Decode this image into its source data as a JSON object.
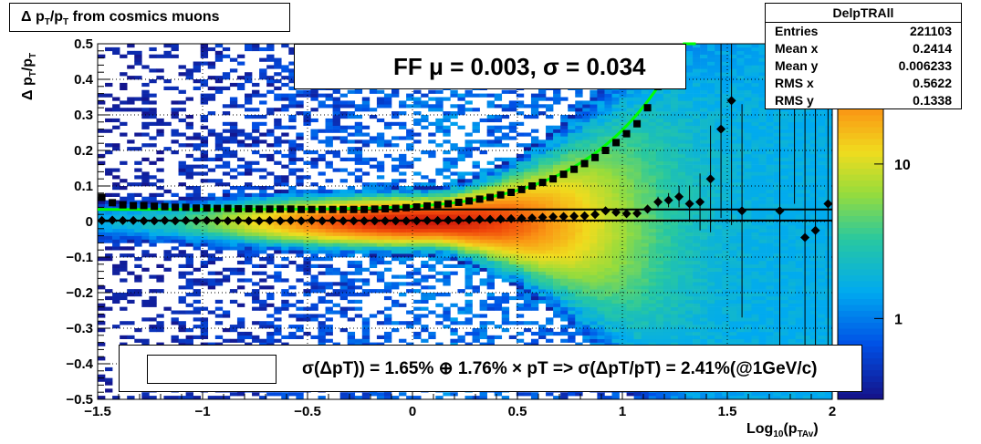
{
  "title": {
    "parts": [
      "Δ p",
      "T",
      "/p",
      "T",
      " from cosmics muons"
    ]
  },
  "stats_box": {
    "name": "DelpTRAll",
    "rows": [
      {
        "label": "Entries",
        "value": "221103"
      },
      {
        "label": "Mean x",
        "value": "0.2414"
      },
      {
        "label": "Mean y",
        "value": "0.006233"
      },
      {
        "label": "RMS x",
        "value": "0.5622"
      },
      {
        "label": "RMS y",
        "value": "0.1338"
      }
    ]
  },
  "fit_legend": {
    "text": "FF μ =  0.003, σ =   0.034"
  },
  "resolution_legend": {
    "text": "σ(ΔpT)) =  1.65% ⊕  1.76% × pT => σ(ΔpT/pT) =  2.41%(@1GeV/c)"
  },
  "axes": {
    "xlabel_main": "Log",
    "xlabel_sub": "10",
    "xlabel_paren": "(p",
    "xlabel_sub2": "TAv",
    "xlabel_close": ")",
    "ylabel_parts": [
      "Δ p",
      "T",
      "/p",
      "T"
    ]
  },
  "colors": {
    "mean_marker": "#000000",
    "sigma_fit": "#00ff00",
    "fit_line": "#000000"
  },
  "chart_data": {
    "type": "heatmap",
    "title": "Δ pT/pT from cosmics muons",
    "xlabel": "Log10(pTAv)",
    "ylabel": "Δ pT/pT",
    "xlim": [
      -1.5,
      2.0
    ],
    "ylim": [
      -0.5,
      0.5
    ],
    "x_ticks": [
      -1.5,
      -1,
      -0.5,
      0,
      0.5,
      1,
      1.5,
      2
    ],
    "x_tick_labels": [
      "−1.5",
      "−1",
      "−0.5",
      "0",
      "0.5",
      "1",
      "1.5",
      "2"
    ],
    "y_ticks": [
      -0.5,
      -0.4,
      -0.3,
      -0.2,
      -0.1,
      0,
      0.1,
      0.2,
      0.3,
      0.4,
      0.5
    ],
    "y_tick_labels": [
      "−0.5",
      "−0.4",
      "−0.3",
      "−0.2",
      "−0.1",
      "0",
      "0.1",
      "0.2",
      "0.3",
      "0.4",
      "0.5"
    ],
    "z_scale": "log",
    "z_tick_labels": [
      "1",
      "10"
    ],
    "z_ticks": [
      1,
      10
    ],
    "z_range": [
      0.3,
      60
    ],
    "grid": true,
    "mean_series": {
      "x": [
        -1.48,
        -1.43,
        -1.38,
        -1.33,
        -1.28,
        -1.23,
        -1.18,
        -1.13,
        -1.08,
        -1.03,
        -0.98,
        -0.93,
        -0.88,
        -0.83,
        -0.78,
        -0.73,
        -0.68,
        -0.63,
        -0.58,
        -0.53,
        -0.48,
        -0.43,
        -0.38,
        -0.33,
        -0.28,
        -0.23,
        -0.18,
        -0.13,
        -0.08,
        -0.03,
        0.02,
        0.07,
        0.12,
        0.17,
        0.22,
        0.27,
        0.32,
        0.37,
        0.42,
        0.47,
        0.52,
        0.57,
        0.62,
        0.67,
        0.72,
        0.77,
        0.82,
        0.87,
        0.92,
        0.97,
        1.02,
        1.07,
        1.12,
        1.17,
        1.22,
        1.27,
        1.32,
        1.37,
        1.42,
        1.47,
        1.52,
        1.57,
        1.75,
        1.82,
        1.87,
        1.92,
        1.98
      ],
      "y": [
        0.003,
        0.004,
        0.003,
        0.003,
        0.002,
        0.002,
        0.003,
        0.002,
        0.003,
        0.002,
        0.003,
        0.002,
        0.002,
        0.003,
        0.002,
        0.002,
        0.003,
        0.002,
        0.003,
        0.002,
        0.003,
        0.002,
        0.003,
        0.002,
        0.002,
        0.002,
        0.002,
        0.002,
        0.002,
        0.002,
        0.002,
        0.003,
        0.003,
        0.004,
        0.004,
        0.005,
        0.006,
        0.006,
        0.007,
        0.008,
        0.009,
        0.01,
        0.012,
        0.013,
        0.014,
        0.015,
        0.016,
        0.02,
        0.03,
        0.026,
        0.022,
        0.023,
        0.035,
        0.055,
        0.06,
        0.07,
        0.05,
        0.055,
        0.12,
        0.26,
        0.34,
        0.03,
        0.03,
        0.5,
        -0.045,
        -0.025,
        0.05
      ],
      "err": [
        0.002,
        0.002,
        0.002,
        0.002,
        0.002,
        0.002,
        0.002,
        0.002,
        0.002,
        0.002,
        0.002,
        0.002,
        0.002,
        0.002,
        0.002,
        0.002,
        0.002,
        0.002,
        0.002,
        0.002,
        0.002,
        0.002,
        0.002,
        0.002,
        0.002,
        0.002,
        0.002,
        0.002,
        0.002,
        0.002,
        0.002,
        0.002,
        0.002,
        0.002,
        0.002,
        0.002,
        0.002,
        0.002,
        0.002,
        0.002,
        0.002,
        0.003,
        0.003,
        0.003,
        0.003,
        0.004,
        0.004,
        0.005,
        0.005,
        0.006,
        0.008,
        0.01,
        0.012,
        0.015,
        0.02,
        0.03,
        0.05,
        0.08,
        0.15,
        0.25,
        0.35,
        0.3,
        0.4,
        0.45,
        0.4,
        0.35,
        0.4
      ]
    },
    "sigma_series": {
      "x": [
        -1.48,
        -1.43,
        -1.38,
        -1.33,
        -1.28,
        -1.23,
        -1.18,
        -1.13,
        -1.08,
        -1.03,
        -0.98,
        -0.93,
        -0.88,
        -0.83,
        -0.78,
        -0.73,
        -0.68,
        -0.63,
        -0.58,
        -0.53,
        -0.48,
        -0.43,
        -0.38,
        -0.33,
        -0.28,
        -0.23,
        -0.18,
        -0.13,
        -0.08,
        -0.03,
        0.02,
        0.07,
        0.12,
        0.17,
        0.22,
        0.27,
        0.32,
        0.37,
        0.42,
        0.47,
        0.52,
        0.57,
        0.62,
        0.67,
        0.72,
        0.77,
        0.82,
        0.87,
        0.92,
        0.97,
        1.02,
        1.07,
        1.12,
        1.17
      ],
      "y": [
        0.068,
        0.053,
        0.047,
        0.045,
        0.045,
        0.043,
        0.042,
        0.04,
        0.04,
        0.038,
        0.038,
        0.037,
        0.037,
        0.036,
        0.036,
        0.035,
        0.035,
        0.035,
        0.035,
        0.034,
        0.034,
        0.034,
        0.034,
        0.034,
        0.034,
        0.034,
        0.035,
        0.036,
        0.037,
        0.039,
        0.041,
        0.044,
        0.047,
        0.05,
        0.054,
        0.058,
        0.063,
        0.068,
        0.075,
        0.082,
        0.09,
        0.1,
        0.11,
        0.12,
        0.133,
        0.147,
        0.163,
        0.18,
        0.2,
        0.222,
        0.247,
        0.275,
        0.32,
        0.38
      ]
    },
    "mean_fit_line": {
      "x": [
        -1.5,
        2.0
      ],
      "y": [
        0.003,
        0.003
      ]
    },
    "sigma_fit_curve": {
      "model": "sqrt(a^2 + (b*pT)^2), pT = 10^x",
      "a": 0.0165,
      "b": 0.0176,
      "note_x_range": [
        -1.5,
        1.35
      ]
    },
    "upper_band_line": {
      "x": [
        -1.5,
        2.0
      ],
      "y": [
        0.034,
        0.034
      ]
    }
  }
}
